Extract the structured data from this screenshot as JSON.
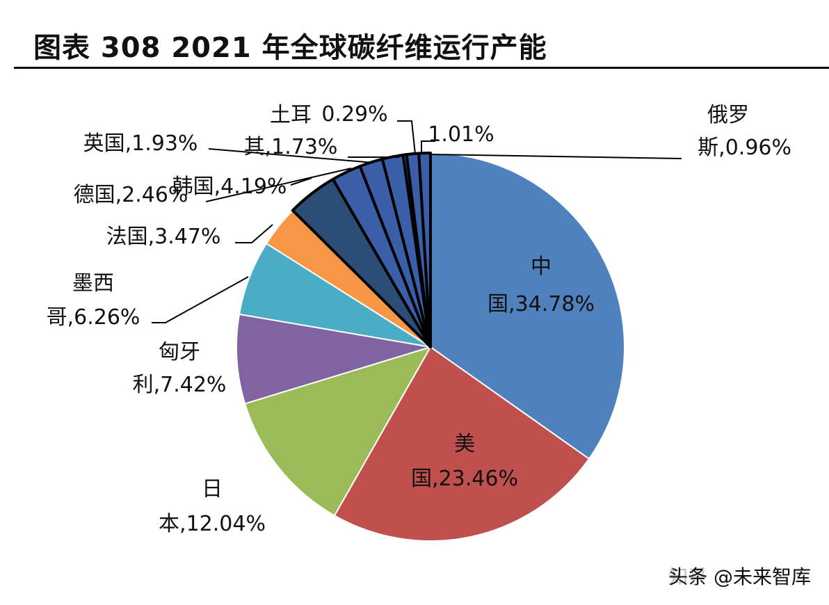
{
  "title": "图表 308 2021 年全球碳纤维运行产能",
  "watermark": {
    "ghost": "知乎 @未来智库",
    "text": "头条 @未来智库"
  },
  "chart_data": {
    "type": "pie",
    "title": "图表 308 2021 年全球碳纤维运行产能",
    "start": "12 o'clock",
    "direction": "clockwise",
    "slices": [
      {
        "name": "中国",
        "value": 34.78,
        "label_lines": [
          "中",
          "国,34.78%"
        ],
        "color": "#4f81bd"
      },
      {
        "name": "美国",
        "value": 23.46,
        "label_lines": [
          "美",
          "国,23.46%"
        ],
        "color": "#c0504d"
      },
      {
        "name": "日本",
        "value": 12.04,
        "label_lines": [
          "日",
          "本,12.04%"
        ],
        "color": "#9bbb59"
      },
      {
        "name": "匈牙利",
        "value": 7.42,
        "label_lines": [
          "匈牙",
          "利,7.42%"
        ],
        "color": "#8064a2"
      },
      {
        "name": "墨西哥",
        "value": 6.26,
        "label_lines": [
          "墨西",
          "哥,6.26%"
        ],
        "color": "#4bacc6"
      },
      {
        "name": "法国",
        "value": 3.47,
        "label_lines": [
          "法国,3.47%"
        ],
        "color": "#f79646"
      },
      {
        "name": "韩国",
        "value": 4.19,
        "label_lines": [
          "韩国,4.19%"
        ],
        "color": "#2c4d75"
      },
      {
        "name": "德国",
        "value": 2.46,
        "label_lines": [
          "德国,2.46%"
        ],
        "color": "#3a5fa8"
      },
      {
        "name": "英国",
        "value": 1.93,
        "label_lines": [
          "英国,1.93%"
        ],
        "color": "#3a5fa8"
      },
      {
        "name": "土耳其",
        "value": 1.73,
        "label_lines": [
          "土耳",
          "其,1.73%"
        ],
        "color": "#3a5fa8"
      },
      {
        "name": "",
        "value": 0.29,
        "label_lines": [
          "0.29%"
        ],
        "color": "#3a5fa8"
      },
      {
        "name": "",
        "value": 1.01,
        "label_lines": [
          "1.01%"
        ],
        "color": "#3a5fa8"
      },
      {
        "name": "俄罗斯",
        "value": 0.96,
        "label_lines": [
          "俄罗",
          "斯,0.96%"
        ],
        "color": "#3a5fa8"
      }
    ]
  }
}
